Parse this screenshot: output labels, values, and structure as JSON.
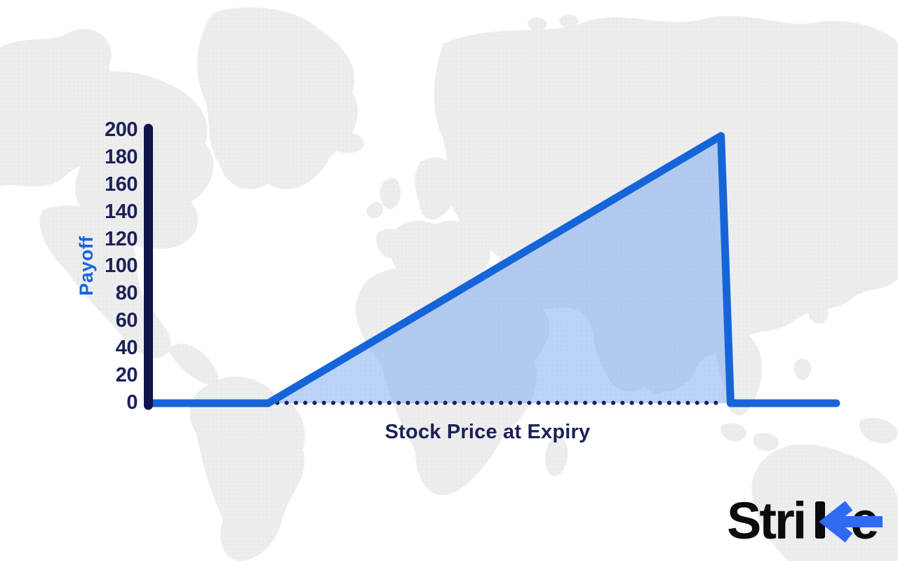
{
  "chart_data": {
    "type": "line",
    "title": "",
    "xlabel": "Stock Price at Expiry",
    "ylabel": "Payoff",
    "ylim": [
      0,
      200
    ],
    "ytick_step": 20,
    "ytick_labels": [
      "200",
      "180",
      "160",
      "140",
      "120",
      "100",
      "80",
      "60",
      "40",
      "20",
      "0"
    ],
    "xtick_labels": [],
    "grid": false,
    "legend": "none",
    "x_axis_style": "dotted",
    "description": "Option payoff diagram: payoff is 0 until the strike price, rises linearly to a peak of about 196, then drops vertically back to 0 and stays flat",
    "series": [
      {
        "name": "Payoff",
        "x_price_units": [
          0,
          17.2,
          83.2,
          84.6,
          100
        ],
        "y_payoff": [
          0,
          0,
          196,
          0,
          0
        ],
        "line_color": "#1565d8",
        "fill_color": "#7dabf2",
        "fill_opacity": 0.52,
        "fill_region": "under the line between x=17.2 and x=84.6"
      }
    ]
  },
  "branding": {
    "logo_full": "Strike",
    "logo_text_pre": "Stri",
    "logo_text_e": "e",
    "logo_text_color": "#0b0b0d",
    "logo_arrow_color": "#2e6bf2"
  },
  "colors": {
    "background": "#ffffff",
    "map_gray": "#ededee",
    "map_dot_gray": "#dfe0e4",
    "axis_navy": "#10164a",
    "tick_text_navy": "#1b2157",
    "ylabel_blue": "#1b65dd",
    "line_blue": "#1565d8",
    "fill_dot_blue": "#a8c3ee"
  }
}
